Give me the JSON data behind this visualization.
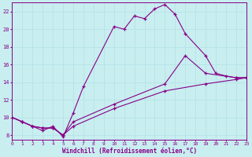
{
  "xlabel": "Windchill (Refroidissement éolien,°C)",
  "bg_color": "#c8eef0",
  "grid_color": "#b8e4e8",
  "line_color": "#880088",
  "xlim": [
    0,
    23
  ],
  "ylim": [
    7.5,
    23
  ],
  "xticks": [
    0,
    1,
    2,
    3,
    4,
    5,
    6,
    7,
    8,
    9,
    10,
    11,
    12,
    13,
    14,
    15,
    16,
    17,
    18,
    19,
    20,
    21,
    22,
    23
  ],
  "yticks": [
    8,
    10,
    12,
    14,
    16,
    18,
    20,
    22
  ],
  "series": [
    {
      "x": [
        0,
        1,
        2,
        3,
        4,
        5,
        6,
        7,
        10,
        11,
        12,
        13,
        14,
        15,
        16,
        17,
        19,
        20,
        21,
        22,
        23
      ],
      "y": [
        10,
        9.5,
        9,
        8.5,
        9,
        7.8,
        10.5,
        13.5,
        20.3,
        20.0,
        21.5,
        21.2,
        22.3,
        22.8,
        21.7,
        19.5,
        17.0,
        15.0,
        14.7,
        14.5,
        14.5
      ]
    },
    {
      "x": [
        0,
        1,
        2,
        3,
        4,
        5,
        6,
        10,
        15,
        17,
        19,
        22,
        23
      ],
      "y": [
        10,
        9.5,
        9,
        8.8,
        8.8,
        8.0,
        9.5,
        11.5,
        13.8,
        17.0,
        15.0,
        14.5,
        14.5
      ]
    },
    {
      "x": [
        0,
        1,
        2,
        3,
        4,
        5,
        6,
        10,
        15,
        19,
        22,
        23
      ],
      "y": [
        10,
        9.5,
        9,
        8.8,
        8.8,
        8.0,
        9.0,
        11.0,
        13.0,
        13.8,
        14.3,
        14.5
      ]
    }
  ]
}
